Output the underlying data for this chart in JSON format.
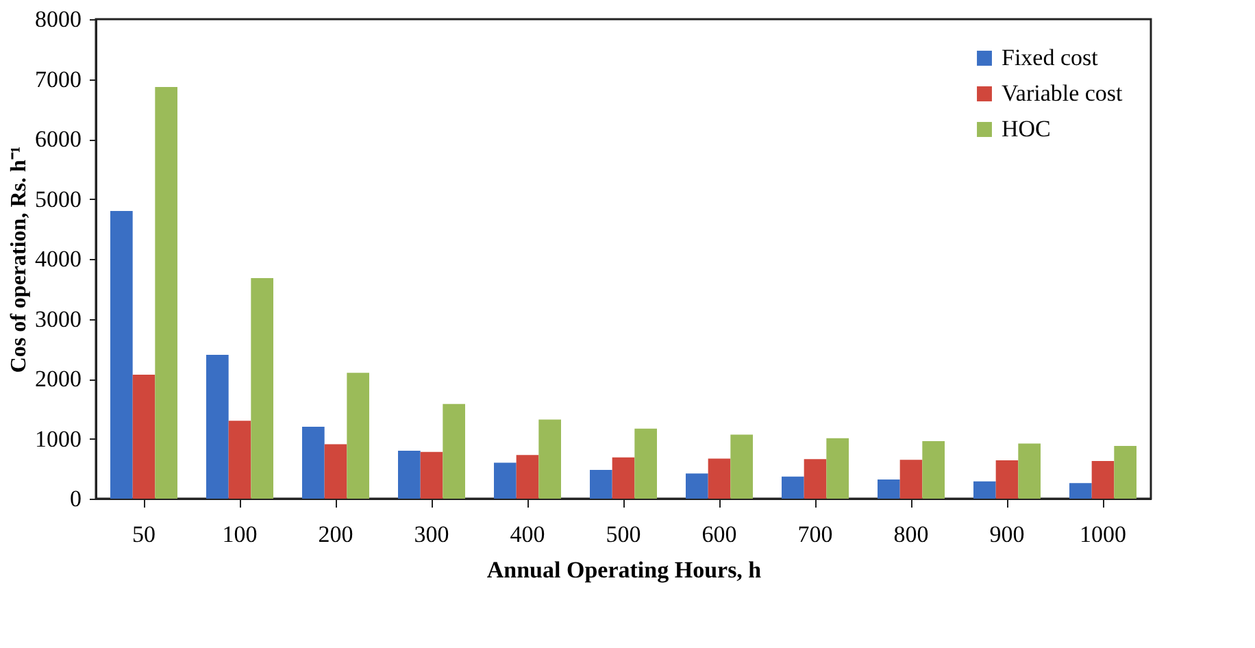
{
  "chart_data": {
    "type": "bar",
    "xlabel": "Annual Operating Hours, h",
    "ylabel": "Cos of operation, Rs. h⁻¹",
    "categories": [
      "50",
      "100",
      "200",
      "300",
      "400",
      "500",
      "600",
      "700",
      "800",
      "900",
      "1000"
    ],
    "series": [
      {
        "name": "Fixed cost",
        "color": "#3a6fc4",
        "values": [
          4800,
          2400,
          1200,
          800,
          600,
          480,
          420,
          370,
          320,
          290,
          260
        ]
      },
      {
        "name": "Variable cost",
        "color": "#d0473c",
        "values": [
          2070,
          1300,
          910,
          780,
          730,
          690,
          670,
          660,
          650,
          640,
          630
        ]
      },
      {
        "name": "HOC",
        "color": "#9bbb59",
        "values": [
          6870,
          3680,
          2100,
          1580,
          1320,
          1170,
          1070,
          1010,
          960,
          920,
          880
        ]
      }
    ],
    "ylim": [
      0,
      8000
    ],
    "yticks": [
      0,
      1000,
      2000,
      3000,
      4000,
      5000,
      6000,
      7000,
      8000
    ],
    "grid": false,
    "legend": "right"
  }
}
